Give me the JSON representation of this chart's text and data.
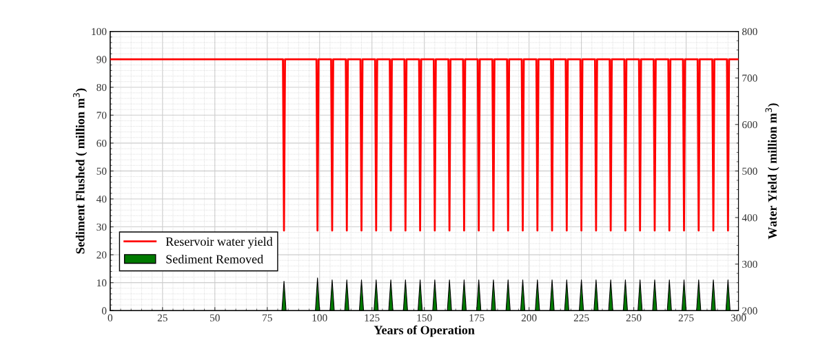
{
  "chart_data": {
    "type": "line",
    "xlabel": "Years of Operation",
    "ylabel": "Sediment Flushed ( million m$^{3}$)",
    "y2label": "Water Yield ( million m$^{3}$)",
    "xlim": [
      0,
      300
    ],
    "xticks": [
      0,
      25,
      50,
      75,
      100,
      125,
      150,
      175,
      200,
      225,
      250,
      275,
      300
    ],
    "ylim": [
      0,
      100
    ],
    "yticks": [
      0,
      10,
      20,
      30,
      40,
      50,
      60,
      70,
      80,
      90,
      100
    ],
    "y2lim": [
      200,
      800
    ],
    "y2ticks": [
      200,
      300,
      400,
      500,
      600,
      700,
      800
    ],
    "grid": true,
    "legend": "left",
    "line_style": "solid",
    "marker": "none",
    "series": [
      {
        "name": "Reservoir water yield",
        "axis": "y2",
        "color": "#ff0000",
        "x": [
          0,
          82.5,
          83,
          83.5,
          98.5,
          99,
          99.5,
          105.5,
          106,
          106.5,
          112.5,
          113,
          113.5,
          119.5,
          120,
          120.5,
          126.5,
          127,
          127.5,
          133.5,
          134,
          134.5,
          140.5,
          141,
          141.5,
          147.5,
          148,
          148.5,
          154.5,
          155,
          155.5,
          161.5,
          162,
          162.5,
          168.5,
          169,
          169.5,
          175.5,
          176,
          176.5,
          182.5,
          183,
          183.5,
          189.5,
          190,
          190.5,
          196.5,
          197,
          197.5,
          203.5,
          204,
          204.5,
          210.5,
          211,
          211.5,
          217.5,
          218,
          218.5,
          224.5,
          225,
          225.5,
          231.5,
          232,
          232.5,
          238.5,
          239,
          239.5,
          245.5,
          246,
          246.5,
          252.5,
          253,
          253.5,
          259.5,
          260,
          260.5,
          266.5,
          267,
          267.5,
          273.5,
          274,
          274.5,
          280.5,
          281,
          281.5,
          287.5,
          288,
          288.5,
          294.5,
          295,
          295.5,
          300
        ],
        "values": [
          740,
          740,
          372,
          740,
          740,
          372,
          740,
          740,
          372,
          740,
          740,
          372,
          740,
          740,
          372,
          740,
          740,
          372,
          740,
          740,
          372,
          740,
          740,
          372,
          740,
          740,
          372,
          740,
          740,
          372,
          740,
          740,
          372,
          740,
          740,
          372,
          740,
          740,
          372,
          740,
          740,
          372,
          740,
          740,
          372,
          740,
          740,
          372,
          740,
          740,
          372,
          740,
          740,
          372,
          740,
          740,
          372,
          740,
          740,
          372,
          740,
          740,
          372,
          740,
          740,
          372,
          740,
          740,
          372,
          740,
          740,
          372,
          740,
          740,
          372,
          740,
          740,
          372,
          740,
          740,
          372,
          740,
          740,
          372,
          740,
          740,
          372,
          740,
          740,
          372,
          740,
          740
        ]
      },
      {
        "name": "Sediment Removed",
        "type": "area",
        "color": "#007a00",
        "x": [
          0,
          82,
          83,
          84,
          98,
          99,
          100,
          105,
          106,
          107,
          112,
          113,
          114,
          119,
          120,
          121,
          126,
          127,
          128,
          133,
          134,
          135,
          140,
          141,
          142,
          147,
          148,
          149,
          154,
          155,
          156,
          161,
          162,
          163,
          168,
          169,
          170,
          175,
          176,
          177,
          182,
          183,
          184,
          189,
          190,
          191,
          196,
          197,
          198,
          203,
          204,
          205,
          210,
          211,
          212,
          217,
          218,
          219,
          224,
          225,
          226,
          231,
          232,
          233,
          238,
          239,
          240,
          245,
          246,
          247,
          252,
          253,
          254,
          259,
          260,
          261,
          266,
          267,
          268,
          273,
          274,
          275,
          280,
          281,
          282,
          287,
          288,
          289,
          294,
          295,
          296,
          300
        ],
        "values": [
          0,
          0,
          10.5,
          0,
          0,
          11.7,
          0,
          0,
          11,
          0,
          0,
          11,
          0,
          0,
          11,
          0,
          0,
          11,
          0,
          0,
          11,
          0,
          0,
          11,
          0,
          0,
          11,
          0,
          0,
          11,
          0,
          0,
          11,
          0,
          0,
          11,
          0,
          0,
          11,
          0,
          0,
          11,
          0,
          0,
          11,
          0,
          0,
          11,
          0,
          0,
          11,
          0,
          0,
          11,
          0,
          0,
          11,
          0,
          0,
          11,
          0,
          0,
          11,
          0,
          0,
          11,
          0,
          0,
          11,
          0,
          0,
          11,
          0,
          0,
          11,
          0,
          0,
          11,
          0,
          0,
          11,
          0,
          0,
          11,
          0,
          0,
          11,
          0,
          0,
          11,
          0,
          0
        ]
      }
    ]
  }
}
